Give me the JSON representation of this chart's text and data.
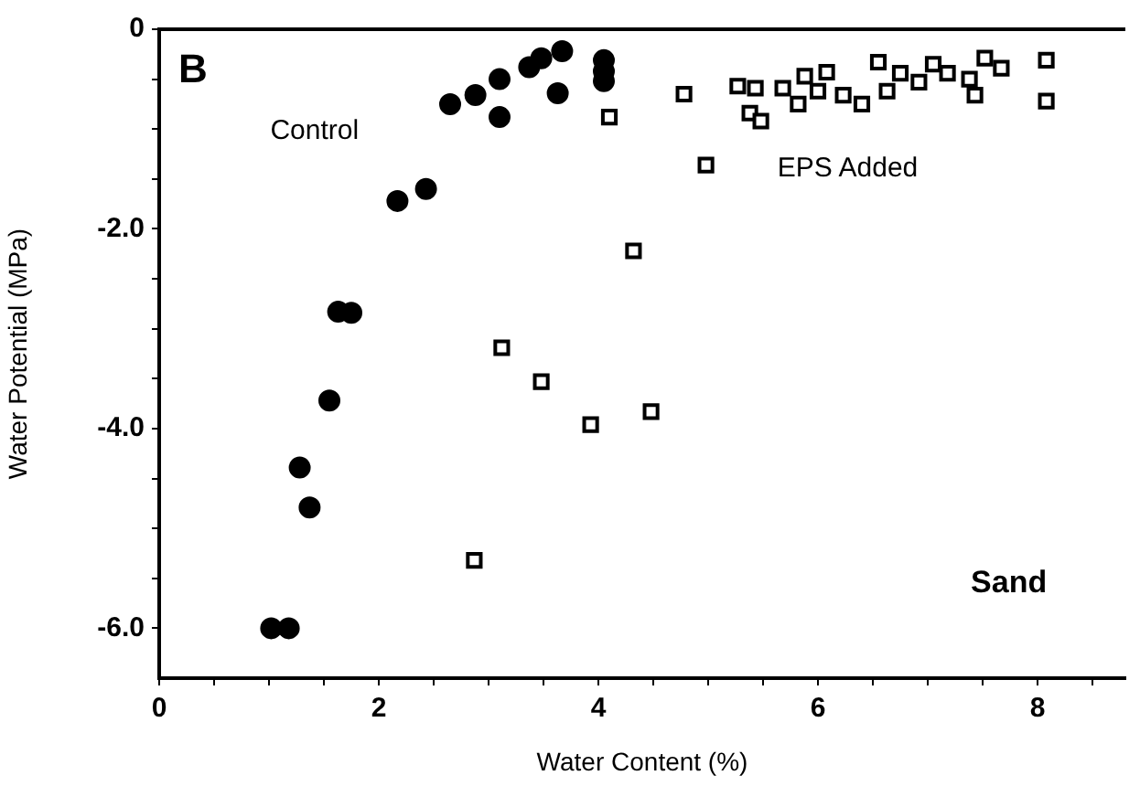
{
  "chart_data": {
    "type": "scatter",
    "xlabel": "Water Content (%)",
    "ylabel": "Water Potential (MPa)",
    "annotations": [
      "B",
      "Sand"
    ],
    "xlim": [
      0,
      8.8
    ],
    "ylim": [
      -6.5,
      0
    ],
    "xticks": [
      0,
      {
        "value": 0.5,
        "label": null
      },
      {
        "value": 1,
        "label": null
      },
      {
        "value": 1.5,
        "label": null
      },
      2,
      {
        "value": 2.5,
        "label": null
      },
      {
        "value": 3,
        "label": null
      },
      {
        "value": 3.5,
        "label": null
      },
      4,
      {
        "value": 4.5,
        "label": null
      },
      {
        "value": 5,
        "label": null
      },
      {
        "value": 5.5,
        "label": null
      },
      6,
      {
        "value": 6.5,
        "label": null
      },
      {
        "value": 7,
        "label": null
      },
      {
        "value": 7.5,
        "label": null
      },
      8,
      {
        "value": 8.5,
        "label": null
      }
    ],
    "yticks": [
      0,
      {
        "value": -0.5,
        "label": null
      },
      {
        "value": -1,
        "label": null
      },
      {
        "value": -1.5,
        "label": null
      },
      {
        "value": -2,
        "label": "-2.0"
      },
      {
        "value": -2.5,
        "label": null
      },
      {
        "value": -3,
        "label": null
      },
      {
        "value": -3.5,
        "label": null
      },
      {
        "value": -4,
        "label": "-4.0"
      },
      {
        "value": -4.5,
        "label": null
      },
      {
        "value": -5,
        "label": null
      },
      {
        "value": -5.5,
        "label": null
      },
      {
        "value": -6,
        "label": "-6.0"
      }
    ],
    "grid": false,
    "legend": false,
    "series": [
      {
        "name": "Control",
        "color": "#000000",
        "marker": "circle",
        "x": [
          1.02,
          1.18,
          1.28,
          1.37,
          1.55,
          1.63,
          1.75,
          2.17,
          2.43,
          2.65,
          2.88,
          3.1,
          3.1,
          3.37,
          3.48,
          3.67,
          3.63,
          4.05,
          4.05,
          4.05
        ],
        "values": [
          -6.0,
          -6.0,
          -4.39,
          -4.79,
          -3.72,
          -2.83,
          -2.84,
          -1.72,
          -1.6,
          -0.75,
          -0.66,
          -0.5,
          -0.88,
          -0.38,
          -0.29,
          -0.22,
          -0.64,
          -0.31,
          -0.42,
          -0.52
        ]
      },
      {
        "name": "EPS Added",
        "color": "#000000",
        "marker": "square",
        "x": [
          2.87,
          3.12,
          3.48,
          3.93,
          4.1,
          4.32,
          4.48,
          4.78,
          4.98,
          5.27,
          5.43,
          5.38,
          5.48,
          5.68,
          5.82,
          5.88,
          6.08,
          6.0,
          6.23,
          6.4,
          6.55,
          6.63,
          6.75,
          6.92,
          7.05,
          7.18,
          7.38,
          7.43,
          7.52,
          7.67,
          8.08,
          8.08
        ],
        "values": [
          -5.32,
          -3.19,
          -3.53,
          -3.96,
          -0.88,
          -2.22,
          -3.83,
          -0.65,
          -1.36,
          -0.57,
          -0.59,
          -0.84,
          -0.92,
          -0.59,
          -0.75,
          -0.47,
          -0.43,
          -0.62,
          -0.66,
          -0.75,
          -0.33,
          -0.62,
          -0.44,
          -0.53,
          -0.35,
          -0.44,
          -0.5,
          -0.66,
          -0.29,
          -0.39,
          -0.31,
          -0.72
        ]
      }
    ]
  }
}
